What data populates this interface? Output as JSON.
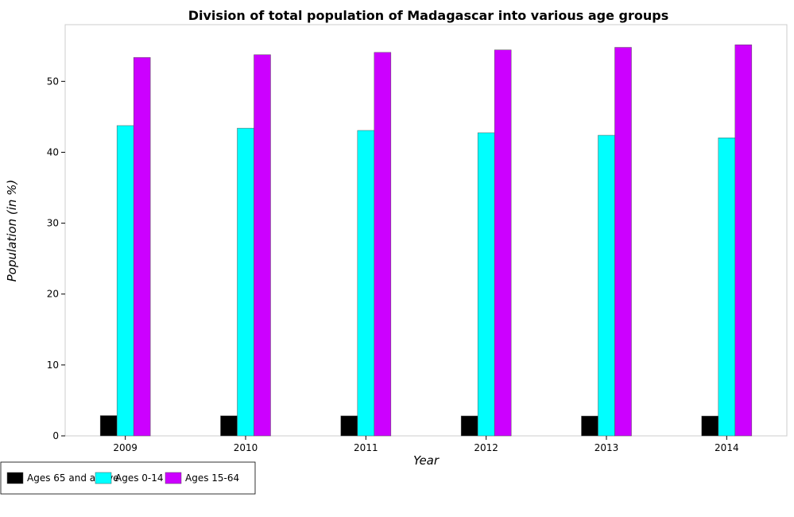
{
  "chart_data": {
    "type": "bar",
    "title": "Division of total population of Madagascar into various age groups",
    "xlabel": "Year",
    "ylabel": "Population (in %)",
    "categories": [
      "2009",
      "2010",
      "2011",
      "2012",
      "2013",
      "2014"
    ],
    "ylim": [
      0,
      58
    ],
    "yticks": [
      0,
      10,
      20,
      30,
      40,
      50
    ],
    "grid": false,
    "legend_position": "bottom-left",
    "series": [
      {
        "name": "Ages 65 and above",
        "color": "#000000",
        "values": [
          2.86,
          2.83,
          2.82,
          2.81,
          2.8,
          2.8
        ]
      },
      {
        "name": "Ages 0-14",
        "color": "#00ffff",
        "values": [
          43.76,
          43.4,
          43.08,
          42.75,
          42.4,
          42.04
        ]
      },
      {
        "name": "Ages 15-64",
        "color": "#cc00ff",
        "values": [
          53.38,
          53.76,
          54.09,
          54.44,
          54.8,
          55.16
        ]
      }
    ]
  }
}
